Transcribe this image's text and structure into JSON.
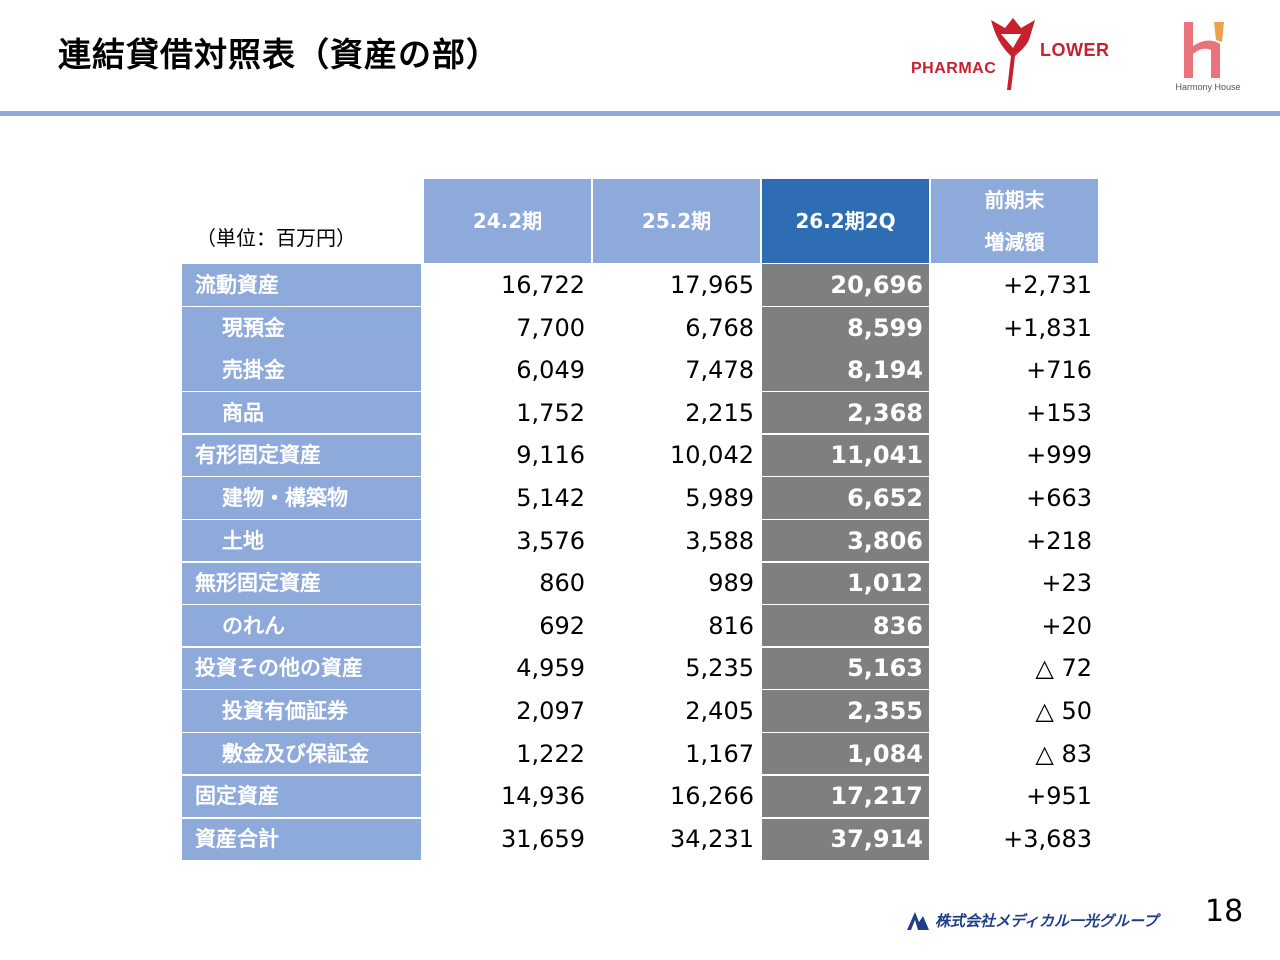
{
  "title": "連結貸借対照表（資産の部）",
  "logos": {
    "pharmac_part1": "PHARMAC",
    "pharmac_part2": "LOWER",
    "harmony_caption": "Harmony House",
    "footer_company": "株式会社メディカル一光グループ"
  },
  "unit_label": "（単位：百万円）",
  "columns": [
    "24.2期",
    "25.2期",
    "26.2期2Q",
    "前期末\n増減額"
  ],
  "column_lines": {
    "c4_line1": "前期末",
    "c4_line2": "増減額"
  },
  "rows": [
    {
      "label": "流動資産",
      "level": "main",
      "v1": "16,722",
      "v2": "17,965",
      "v3": "20,696",
      "diff": "+2,731"
    },
    {
      "label": "現預金",
      "level": "sub",
      "v1": "7,700",
      "v2": "6,768",
      "v3": "8,599",
      "diff": "+1,831"
    },
    {
      "label": "売掛金",
      "level": "sub",
      "v1": "6,049",
      "v2": "7,478",
      "v3": "8,194",
      "diff": "+716"
    },
    {
      "label": "商品",
      "level": "sub",
      "v1": "1,752",
      "v2": "2,215",
      "v3": "2,368",
      "diff": "+153"
    },
    {
      "label": "有形固定資産",
      "level": "main",
      "v1": "9,116",
      "v2": "10,042",
      "v3": "11,041",
      "diff": "+999"
    },
    {
      "label": "建物・構築物",
      "level": "sub",
      "v1": "5,142",
      "v2": "5,989",
      "v3": "6,652",
      "diff": "+663"
    },
    {
      "label": "土地",
      "level": "sub",
      "v1": "3,576",
      "v2": "3,588",
      "v3": "3,806",
      "diff": "+218"
    },
    {
      "label": "無形固定資産",
      "level": "main",
      "v1": "860",
      "v2": "989",
      "v3": "1,012",
      "diff": "+23"
    },
    {
      "label": "のれん",
      "level": "sub",
      "v1": "692",
      "v2": "816",
      "v3": "836",
      "diff": "+20"
    },
    {
      "label": "投資その他の資産",
      "level": "main",
      "v1": "4,959",
      "v2": "5,235",
      "v3": "5,163",
      "diff": "△ 72"
    },
    {
      "label": "投資有価証券",
      "level": "sub",
      "v1": "2,097",
      "v2": "2,405",
      "v3": "2,355",
      "diff": "△ 50"
    },
    {
      "label": "敷金及び保証金",
      "level": "sub",
      "v1": "1,222",
      "v2": "1,167",
      "v3": "1,084",
      "diff": "△ 83"
    },
    {
      "label": "固定資産",
      "level": "main",
      "v1": "14,936",
      "v2": "16,266",
      "v3": "17,217",
      "diff": "+951"
    },
    {
      "label": "資産合計",
      "level": "main",
      "v1": "31,659",
      "v2": "34,231",
      "v3": "37,914",
      "diff": "+3,683"
    }
  ],
  "page_number": "18",
  "colors": {
    "header_blue": "#8eaadb",
    "highlight_blue": "#2e6db4",
    "highlight_gray": "#7f7f7f",
    "rule": "#8faad6",
    "brand_red": "#c8202d",
    "harmony_pink": "#e8737c"
  }
}
